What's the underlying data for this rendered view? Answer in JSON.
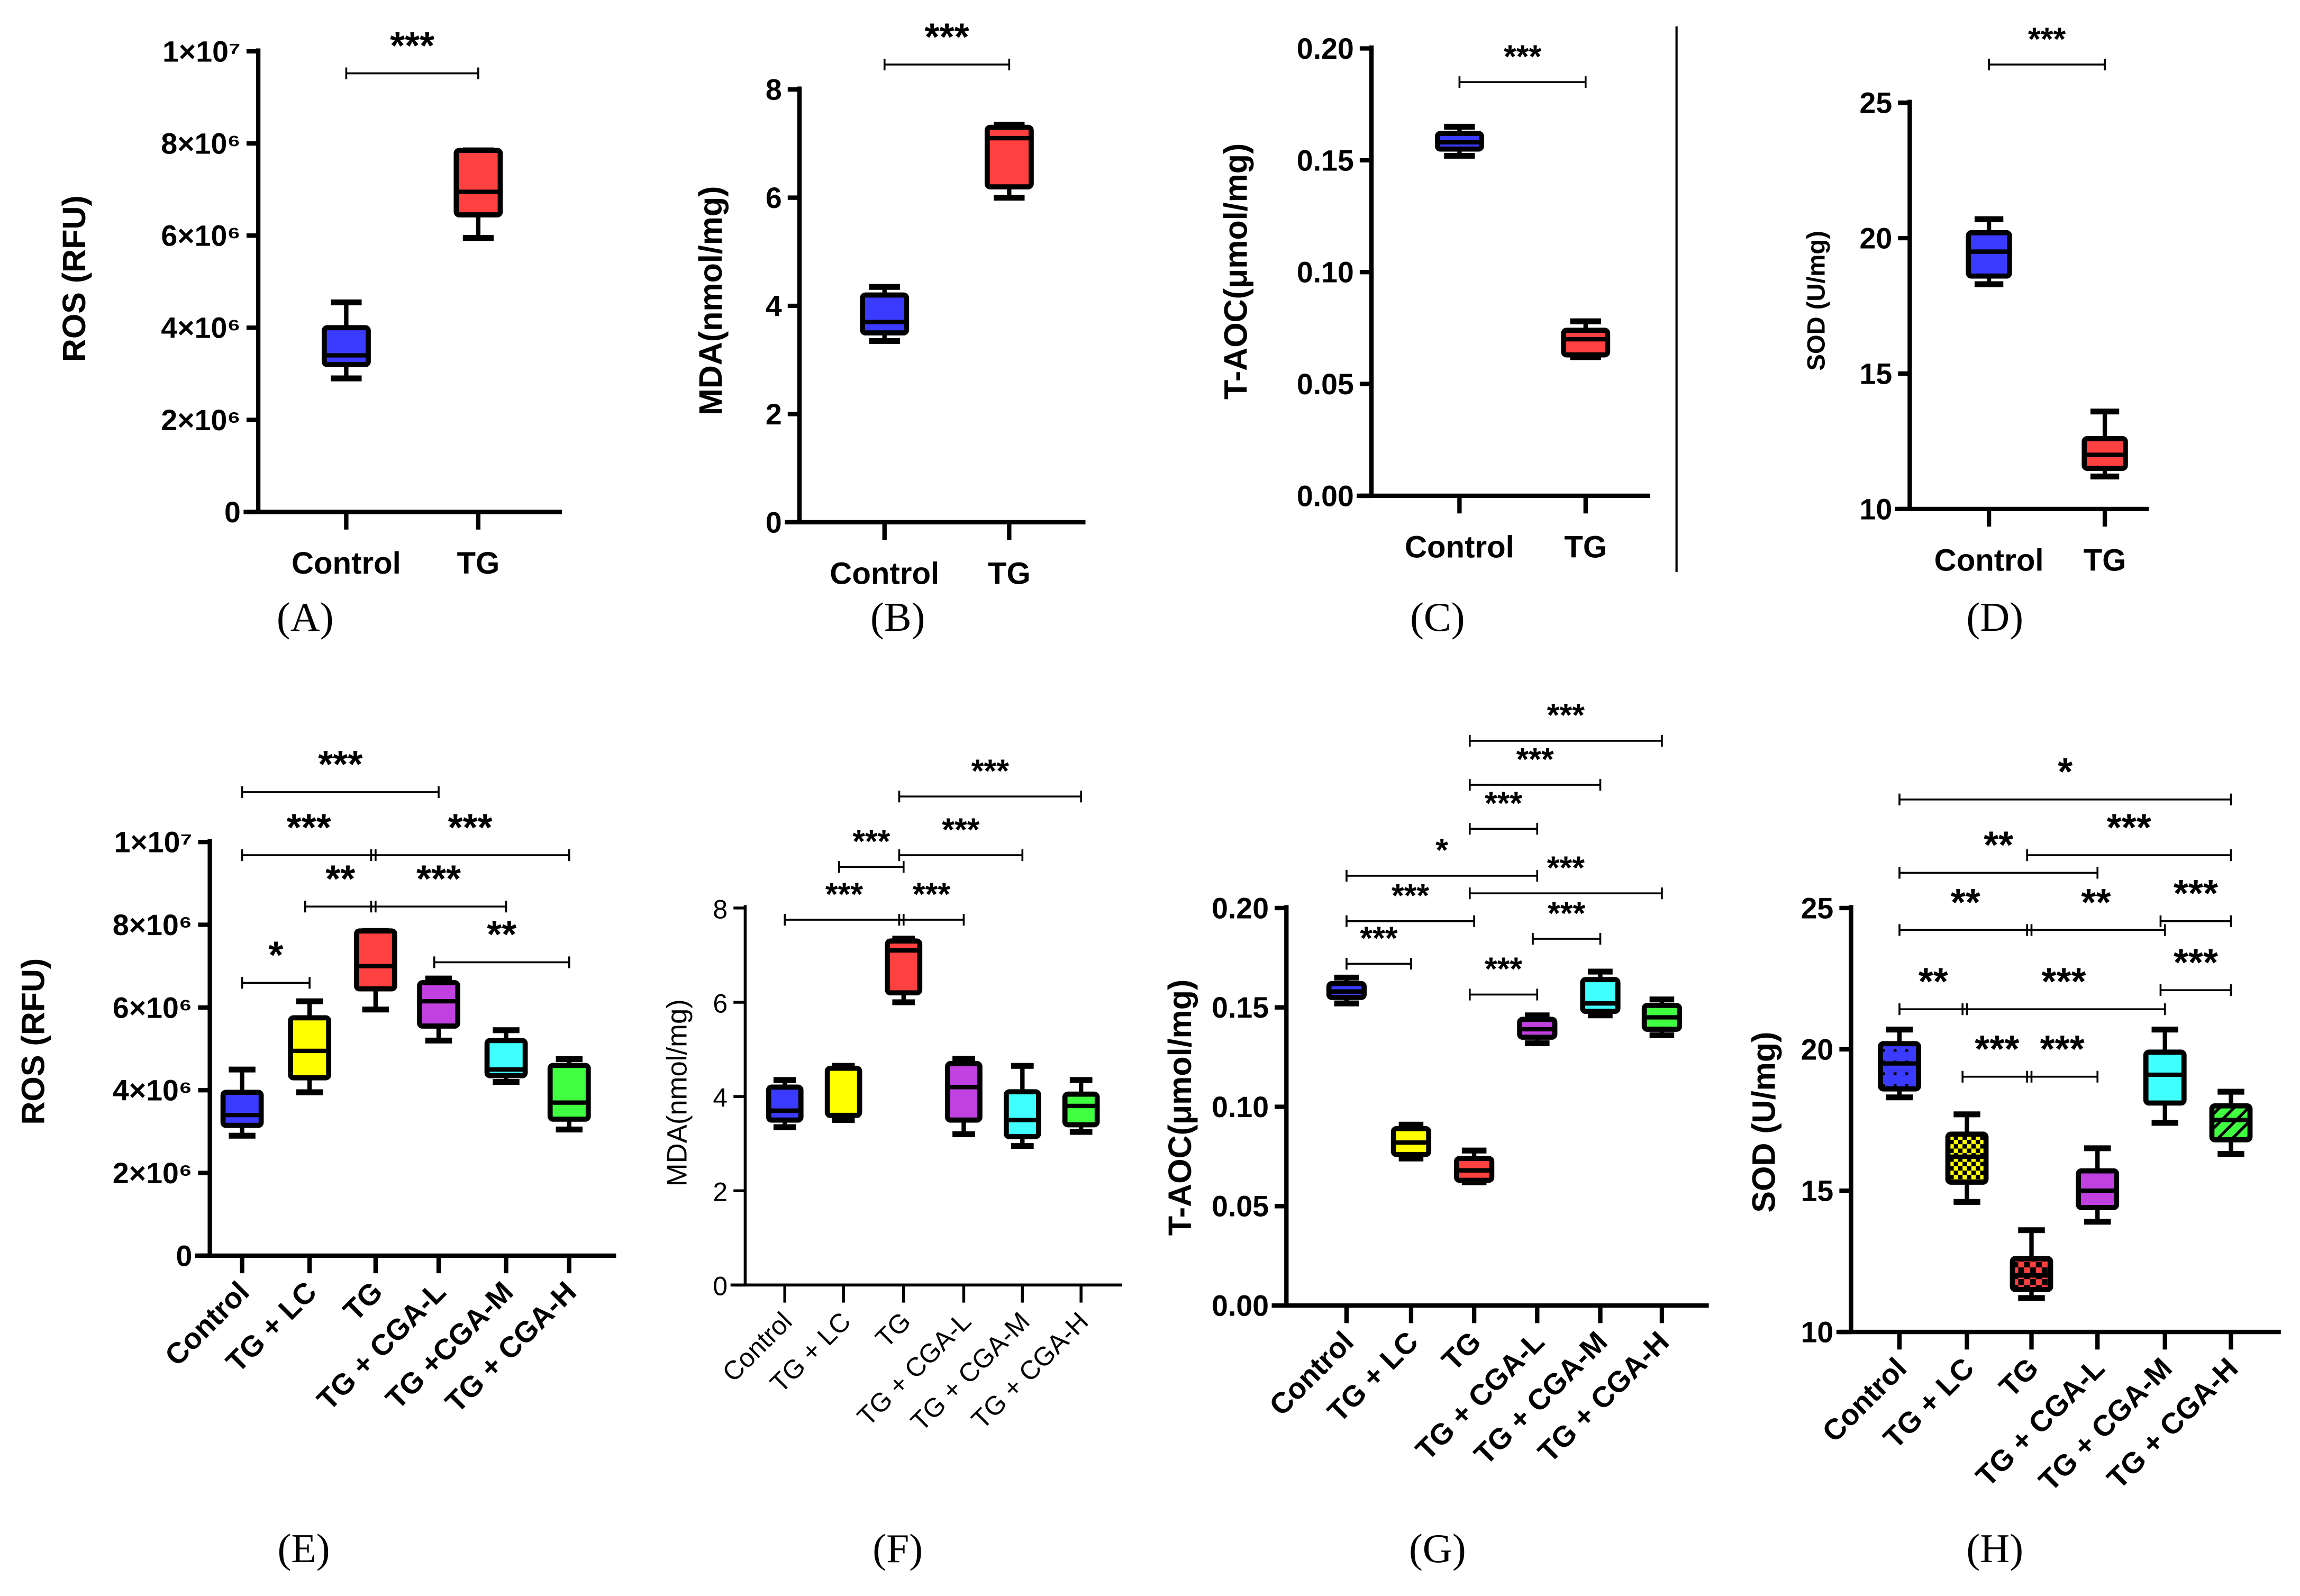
{
  "chart_data": [
    {
      "panel": "(A)",
      "type": "box",
      "ylabel": "ROS (RFU)",
      "ylim": [
        0,
        10000000
      ],
      "yticks": [
        0,
        2000000,
        4000000,
        6000000,
        8000000,
        10000000
      ],
      "ytick_labels": [
        "0",
        "2×10⁶",
        "4×10⁶",
        "6×10⁶",
        "8×10⁶",
        "1×10⁷"
      ],
      "categories": [
        "Control",
        "TG"
      ],
      "boxes": [
        [
          2900000,
          3200000,
          3400000,
          4000000,
          4550000
        ],
        [
          5950000,
          6450000,
          6950000,
          7850000,
          7850000
        ]
      ],
      "colors": [
        "#3b3bff",
        "#ff4040"
      ],
      "brackets": [
        {
          "from": 0,
          "to": 1,
          "label": "***"
        }
      ]
    },
    {
      "panel": "(B)",
      "type": "box",
      "ylabel": "MDA(nmol/mg)",
      "ylim": [
        0,
        8
      ],
      "yticks": [
        0,
        2,
        4,
        6,
        8
      ],
      "ytick_labels": [
        "0",
        "2",
        "4",
        "6",
        "8"
      ],
      "categories": [
        "Control",
        "TG"
      ],
      "boxes": [
        [
          3.35,
          3.5,
          3.7,
          4.2,
          4.35
        ],
        [
          6.0,
          6.2,
          7.1,
          7.3,
          7.35
        ]
      ],
      "colors": [
        "#3b3bff",
        "#ff4040"
      ],
      "brackets": [
        {
          "from": 0,
          "to": 1,
          "label": "***"
        }
      ]
    },
    {
      "panel": "(C)",
      "type": "box",
      "ylabel": "T-AOC(μmol/mg)",
      "ylim": [
        0,
        0.2
      ],
      "yticks": [
        0,
        0.05,
        0.1,
        0.15,
        0.2
      ],
      "ytick_labels": [
        "0.00",
        "0.05",
        "0.10",
        "0.15",
        "0.20"
      ],
      "categories": [
        "Control",
        "TG"
      ],
      "boxes": [
        [
          0.152,
          0.155,
          0.158,
          0.162,
          0.165
        ],
        [
          0.062,
          0.063,
          0.07,
          0.074,
          0.078
        ]
      ],
      "colors": [
        "#3b3bff",
        "#ff4040"
      ],
      "brackets": [
        {
          "from": 0,
          "to": 1,
          "label": "***"
        }
      ]
    },
    {
      "panel": "(D)",
      "type": "box",
      "ylabel": "SOD (U/mg)",
      "ylim": [
        10,
        25
      ],
      "yticks": [
        10,
        15,
        20,
        25
      ],
      "ytick_labels": [
        "10",
        "15",
        "20",
        "25"
      ],
      "categories": [
        "Control",
        "TG"
      ],
      "boxes": [
        [
          18.3,
          18.6,
          19.5,
          20.2,
          20.7
        ],
        [
          11.2,
          11.5,
          12.0,
          12.6,
          13.6
        ]
      ],
      "colors": [
        "#3b3bff",
        "#ff4040"
      ],
      "brackets": [
        {
          "from": 0,
          "to": 1,
          "label": "***"
        }
      ]
    },
    {
      "panel": "(E)",
      "type": "box",
      "ylabel": "ROS (RFU)",
      "ylim": [
        0,
        10000000
      ],
      "yticks": [
        0,
        2000000,
        4000000,
        6000000,
        8000000,
        10000000
      ],
      "ytick_labels": [
        "0",
        "2×10⁶",
        "4×10⁶",
        "6×10⁶",
        "8×10⁶",
        "1×10⁷"
      ],
      "categories": [
        "Control",
        "TG + LC",
        "TG",
        "TG + CGA-L",
        "TG +CGA-M",
        "TG + CGA-H"
      ],
      "boxes": [
        [
          2900000,
          3150000,
          3400000,
          3950000,
          4500000
        ],
        [
          3950000,
          4300000,
          4950000,
          5750000,
          6150000
        ],
        [
          5950000,
          6450000,
          7000000,
          7850000,
          7850000
        ],
        [
          5200000,
          5550000,
          6150000,
          6600000,
          6700000
        ],
        [
          4200000,
          4350000,
          4500000,
          5200000,
          5450000
        ],
        [
          3050000,
          3300000,
          3700000,
          4600000,
          4750000
        ]
      ],
      "colors": [
        "#3b3bff",
        "#ffff00",
        "#ff4040",
        "#c040e0",
        "#40ffff",
        "#40ff40"
      ],
      "brackets": [
        {
          "from": 0,
          "to": 3,
          "label": "***"
        },
        {
          "from": 0,
          "to": 2,
          "label": "***"
        },
        {
          "from": 2,
          "to": 5,
          "label": "***"
        },
        {
          "from": 1,
          "to": 2,
          "label": "**"
        },
        {
          "from": 2,
          "to": 4,
          "label": "***"
        },
        {
          "from": 3,
          "to": 5,
          "label": "**"
        },
        {
          "from": 0,
          "to": 1,
          "label": "*"
        }
      ]
    },
    {
      "panel": "(F)",
      "type": "box",
      "ylabel": "MDA(nmol/mg)",
      "ylim": [
        0,
        8
      ],
      "yticks": [
        0,
        2,
        4,
        6,
        8
      ],
      "ytick_labels": [
        "0",
        "2",
        "4",
        "6",
        "8"
      ],
      "categories": [
        "Control",
        "TG + LC",
        "TG",
        "TG + CGA-L",
        "TG + CGA-M",
        "TG + CGA-H"
      ],
      "boxes": [
        [
          3.35,
          3.5,
          3.7,
          4.2,
          4.35
        ],
        [
          3.5,
          3.6,
          3.6,
          4.6,
          4.65
        ],
        [
          6.0,
          6.2,
          7.1,
          7.3,
          7.35
        ],
        [
          3.2,
          3.5,
          4.2,
          4.7,
          4.8
        ],
        [
          2.95,
          3.15,
          3.5,
          4.1,
          4.65
        ],
        [
          3.25,
          3.4,
          3.8,
          4.05,
          4.35
        ]
      ],
      "colors": [
        "#3b3bff",
        "#ffff00",
        "#ff4040",
        "#c040e0",
        "#40ffff",
        "#40ff40"
      ],
      "brackets": [
        {
          "from": 2,
          "to": 5,
          "label": "***"
        },
        {
          "from": 2,
          "to": 4,
          "label": "***"
        },
        {
          "from": 1,
          "to": 2,
          "label": "***"
        },
        {
          "from": 0,
          "to": 2,
          "label": "***"
        },
        {
          "from": 2,
          "to": 3,
          "label": "***"
        }
      ]
    },
    {
      "panel": "(G)",
      "type": "box",
      "ylabel": "T-AOC(μmol/mg)",
      "ylim": [
        0,
        0.2
      ],
      "yticks": [
        0,
        0.05,
        0.1,
        0.15,
        0.2
      ],
      "ytick_labels": [
        "0.00",
        "0.05",
        "0.10",
        "0.15",
        "0.20"
      ],
      "categories": [
        "Control",
        "TG + LC",
        "TG",
        "TG + CGA-L",
        "TG + CGA-M",
        "TG + CGA-H"
      ],
      "boxes": [
        [
          0.152,
          0.155,
          0.158,
          0.162,
          0.165
        ],
        [
          0.074,
          0.076,
          0.082,
          0.089,
          0.091
        ],
        [
          0.062,
          0.063,
          0.068,
          0.074,
          0.078
        ],
        [
          0.132,
          0.135,
          0.139,
          0.144,
          0.146
        ],
        [
          0.146,
          0.148,
          0.152,
          0.164,
          0.168
        ],
        [
          0.136,
          0.139,
          0.145,
          0.151,
          0.154
        ]
      ],
      "colors": [
        "#3b3bff",
        "#ffff00",
        "#ff4040",
        "#c040e0",
        "#40ffff",
        "#40ff40"
      ],
      "brackets": [
        {
          "from": 2,
          "to": 5,
          "label": "***"
        },
        {
          "from": 2,
          "to": 4,
          "label": "***"
        },
        {
          "from": 2,
          "to": 3,
          "label": "***"
        },
        {
          "from": 0,
          "to": 3,
          "label": "*"
        },
        {
          "from": 2,
          "to": 5,
          "label": "***"
        },
        {
          "from": 0,
          "to": 2,
          "label": "***"
        },
        {
          "from": 3,
          "to": 4,
          "label": "***"
        },
        {
          "from": 0,
          "to": 1,
          "label": "***"
        },
        {
          "from": 2,
          "to": 3,
          "label": "***"
        }
      ]
    },
    {
      "panel": "(H)",
      "type": "box",
      "ylabel": "SOD (U/mg)",
      "ylim": [
        10,
        25
      ],
      "yticks": [
        10,
        15,
        20,
        25
      ],
      "ytick_labels": [
        "10",
        "15",
        "20",
        "25"
      ],
      "categories": [
        "Control",
        "TG + LC",
        "TG",
        "TG + CGA-L",
        "TG + CGA-M",
        "TG + CGA-H"
      ],
      "boxes": [
        [
          18.3,
          18.6,
          19.5,
          20.2,
          20.7
        ],
        [
          14.6,
          15.3,
          16.2,
          17.0,
          17.7
        ],
        [
          11.2,
          11.5,
          12.0,
          12.6,
          13.6
        ],
        [
          13.9,
          14.4,
          15.0,
          15.7,
          16.5
        ],
        [
          17.4,
          18.1,
          19.1,
          19.9,
          20.7
        ],
        [
          16.3,
          16.8,
          17.5,
          18.0,
          18.5
        ]
      ],
      "colors": [
        "#3b3bff",
        "#ffff00",
        "#ff4040",
        "#c040e0",
        "#40ffff",
        "#40ff40"
      ],
      "patterns": [
        "dots",
        "checker",
        "checker",
        "lines",
        "lines",
        "stripes"
      ],
      "brackets": [
        {
          "from": 0,
          "to": 5,
          "label": "*"
        },
        {
          "from": 2,
          "to": 5,
          "label": "***"
        },
        {
          "from": 0,
          "to": 3,
          "label": "**"
        },
        {
          "from": 4,
          "to": 5,
          "label": "***"
        },
        {
          "from": 0,
          "to": 2,
          "label": "**"
        },
        {
          "from": 2,
          "to": 4,
          "label": "**"
        },
        {
          "from": 4,
          "to": 5,
          "label": "***"
        },
        {
          "from": 0,
          "to": 1,
          "label": "**"
        },
        {
          "from": 1,
          "to": 4,
          "label": "***"
        },
        {
          "from": 1,
          "to": 2,
          "label": "***"
        },
        {
          "from": 2,
          "to": 3,
          "label": "***"
        }
      ]
    }
  ]
}
